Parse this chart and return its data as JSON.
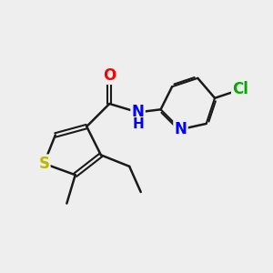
{
  "background_color": "#eeeeee",
  "atom_colors": {
    "S": "#b8b800",
    "N": "#0000ff",
    "O": "#ff0000",
    "Cl": "#00aa00",
    "C": "#000000"
  },
  "bond_color": "#1a1a1a",
  "bond_width": 1.8,
  "font_size": 12,
  "figsize": [
    3.0,
    3.0
  ],
  "dpi": 100
}
